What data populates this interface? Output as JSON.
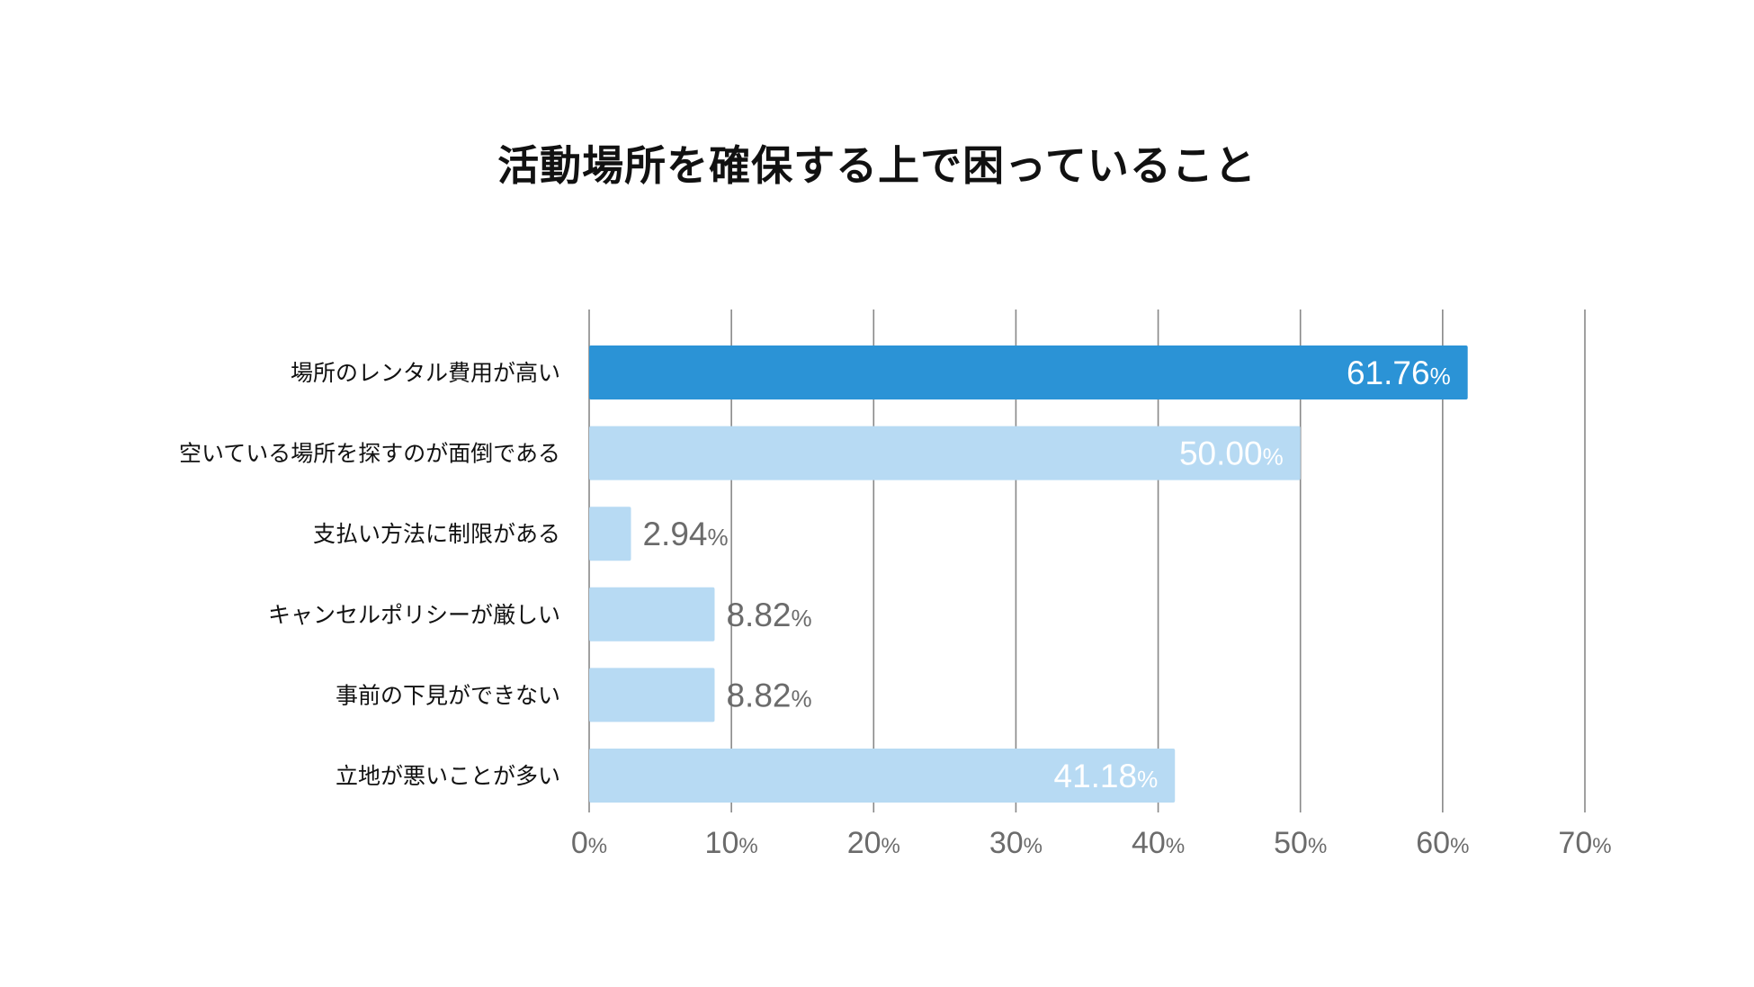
{
  "chart_data": {
    "type": "bar",
    "orientation": "horizontal",
    "title": "活動場所を確保する上で困っていること",
    "categories": [
      "場所のレンタル費用が高い",
      "空いている場所を探すのが面倒である",
      "支払い方法に制限がある",
      "キャンセルポリシーが厳しい",
      "事前の下見ができない",
      "立地が悪いことが多い"
    ],
    "values": [
      61.76,
      50.0,
      2.94,
      8.82,
      8.82,
      41.18
    ],
    "value_labels": [
      "61.76",
      "50.00",
      "2.94",
      "8.82",
      "8.82",
      "41.18"
    ],
    "unit": "%",
    "xlim": [
      0,
      70
    ],
    "ticks": [
      "0",
      "10",
      "20",
      "30",
      "40",
      "50",
      "60",
      "70"
    ],
    "grid": true,
    "highlight_index": 0,
    "colors": {
      "highlight": "#2b93d6",
      "bar": "#b7daf3",
      "grid": "#888888",
      "label_inside": "#ffffff",
      "label_outside": "#6b6b6b"
    }
  }
}
